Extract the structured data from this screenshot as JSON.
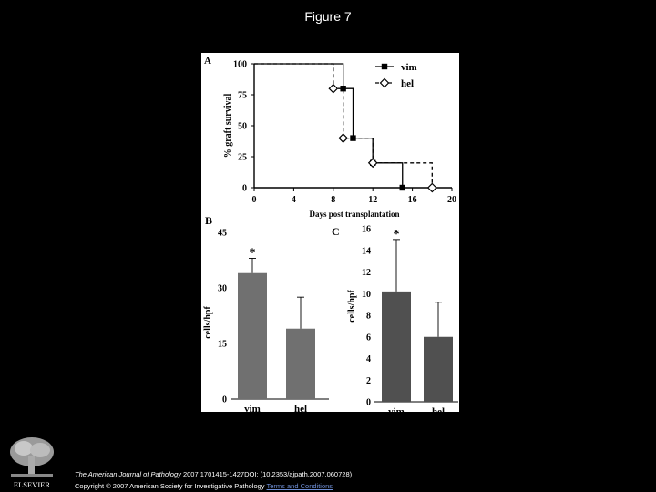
{
  "slide_title": "Figure 7",
  "publisher": "ELSEVIER",
  "citation": {
    "journal": "The American Journal of Pathology",
    "line1_rest": " 2007 1701415-1427DOI: (10.2353/ajpath.2007.060728)",
    "line2_prefix": "Copyright © 2007 American Society for Investigative Pathology ",
    "terms_link": "Terms and Conditions"
  },
  "colors": {
    "background": "#000000",
    "panel": "#ffffff",
    "bar_b": "#707070",
    "bar_c": "#505050"
  },
  "chart_data": [
    {
      "panel": "A",
      "type": "line",
      "step": true,
      "xlabel": "Days post transplantation",
      "ylabel": "% graft survival",
      "xlim": [
        0,
        20
      ],
      "ylim": [
        0,
        100
      ],
      "xticks": [
        0,
        4,
        8,
        12,
        16,
        20
      ],
      "yticks": [
        0,
        25,
        50,
        75,
        100
      ],
      "legend_position": "top-right",
      "series": [
        {
          "name": "vim",
          "style": "solid",
          "marker": "filled-square",
          "x": [
            0,
            9,
            10,
            12,
            15
          ],
          "y": [
            100,
            80,
            40,
            20,
            0
          ]
        },
        {
          "name": "hel",
          "style": "dashed",
          "marker": "open-diamond",
          "x": [
            0,
            8,
            9,
            12,
            18
          ],
          "y": [
            100,
            80,
            40,
            20,
            0
          ]
        }
      ]
    },
    {
      "panel": "B",
      "type": "bar",
      "ylabel": "cells/hpf",
      "categories": [
        "vim",
        "hel"
      ],
      "values": [
        34,
        19
      ],
      "errors": [
        4,
        8.5
      ],
      "ylim": [
        0,
        45
      ],
      "yticks": [
        0,
        15,
        30,
        45
      ],
      "annotations": [
        {
          "category": "vim",
          "text": "*"
        }
      ]
    },
    {
      "panel": "C",
      "type": "bar",
      "ylabel": "cells/hpf",
      "categories": [
        "vim",
        "hel"
      ],
      "values": [
        10.2,
        6
      ],
      "errors": [
        4.8,
        3.2
      ],
      "ylim": [
        0,
        16
      ],
      "yticks": [
        0,
        2,
        4,
        6,
        8,
        10,
        12,
        14,
        16
      ],
      "annotations": [
        {
          "category": "vim",
          "text": "*"
        }
      ]
    }
  ]
}
